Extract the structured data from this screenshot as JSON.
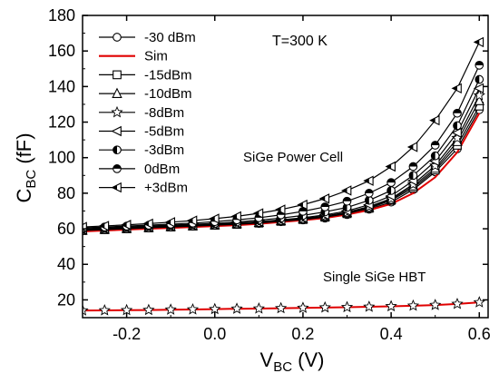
{
  "chart_data": {
    "type": "line",
    "xlabel": "V",
    "xlabel_sub": "BC",
    "xlabel_unit": " (V)",
    "ylabel": "C",
    "ylabel_sub": "BC",
    "ylabel_unit": " (fF)",
    "xlim": [
      -0.3,
      0.62
    ],
    "ylim": [
      10,
      180
    ],
    "xticks": [
      -0.2,
      0.0,
      0.2,
      0.4,
      0.6
    ],
    "yticks": [
      20,
      40,
      60,
      80,
      100,
      120,
      140,
      160,
      180
    ],
    "xtick_labels": [
      "-0.2",
      "0.0",
      "0.2",
      "0.4",
      "0.6"
    ],
    "ytick_labels": [
      "20",
      "40",
      "60",
      "80",
      "100",
      "120",
      "140",
      "160",
      "180"
    ],
    "grid": false,
    "legend_placement": "top-left",
    "annotations": {
      "temperature": "T=300 K",
      "power_cell": "SiGe Power Cell",
      "single_hbt": "Single SiGe HBT"
    },
    "x": [
      -0.3,
      -0.25,
      -0.2,
      -0.15,
      -0.1,
      -0.05,
      0.0,
      0.05,
      0.1,
      0.15,
      0.2,
      0.25,
      0.3,
      0.35,
      0.4,
      0.45,
      0.5,
      0.55,
      0.6
    ],
    "series": [
      {
        "name": "-30 dBm",
        "marker": "circle-open",
        "color": "#000000",
        "values": [
          59,
          59.5,
          60,
          60.5,
          61,
          61.5,
          62,
          62.5,
          63,
          64,
          65,
          66,
          68,
          71,
          75,
          82,
          92,
          105,
          127
        ]
      },
      {
        "name": "Sim",
        "marker": "none",
        "color": "#e00000",
        "values": [
          58.5,
          59,
          59.5,
          60,
          60.5,
          61,
          61.5,
          62,
          62.8,
          63.8,
          64.8,
          66,
          68,
          70.5,
          74,
          80,
          89,
          103,
          125
        ]
      },
      {
        "name": "-15dBm",
        "marker": "square-open",
        "color": "#000000",
        "values": [
          59,
          59.5,
          60,
          60.5,
          61,
          61.5,
          62,
          62.5,
          63.2,
          64.2,
          65.2,
          66.5,
          68.5,
          71.5,
          76,
          83,
          93,
          107,
          129
        ]
      },
      {
        "name": "-10dBm",
        "marker": "triangle-up-open",
        "color": "#000000",
        "values": [
          59.2,
          59.7,
          60.2,
          60.7,
          61.2,
          61.7,
          62.2,
          62.8,
          63.5,
          64.5,
          65.5,
          67,
          69,
          72,
          76.5,
          84,
          94,
          109,
          132
        ]
      },
      {
        "name": "-8dBm",
        "marker": "star-open",
        "color": "#000000",
        "values": [
          59.4,
          59.9,
          60.4,
          60.9,
          61.4,
          61.9,
          62.4,
          63,
          63.7,
          64.7,
          65.8,
          67.2,
          69.3,
          72.5,
          77,
          85,
          95.5,
          111,
          135
        ]
      },
      {
        "name": "-5dBm",
        "marker": "triangle-left-open",
        "color": "#000000",
        "values": [
          59.6,
          60.1,
          60.6,
          61.1,
          61.6,
          62.1,
          62.6,
          63.2,
          64,
          65,
          66.2,
          67.8,
          70,
          73.5,
          78.5,
          87,
          98,
          114,
          139
        ]
      },
      {
        "name": "-3dBm",
        "marker": "circle-half-left",
        "color": "#000000",
        "values": [
          60,
          60.5,
          61,
          61.5,
          62,
          62.5,
          63,
          63.8,
          64.8,
          66,
          67.5,
          69.5,
          72,
          76,
          81.5,
          90,
          101,
          118,
          144
        ]
      },
      {
        "name": "0dBm",
        "marker": "circle-half-top",
        "color": "#000000",
        "values": [
          60.5,
          61,
          61.5,
          62,
          62.6,
          63.2,
          64,
          65,
          66.2,
          67.8,
          69.8,
          72.3,
          75.5,
          80,
          86,
          95,
          107,
          125,
          152
        ]
      },
      {
        "name": "+3dBm",
        "marker": "triangle-left-half",
        "color": "#000000",
        "values": [
          61,
          61.6,
          62.2,
          62.9,
          63.7,
          64.6,
          65.7,
          67,
          68.7,
          70.8,
          73.5,
          77,
          81.5,
          87,
          95,
          106,
          121,
          139,
          165
        ]
      },
      {
        "name": "",
        "marker": "star-open",
        "color": "#000000",
        "line_color": "#e00000",
        "values": [
          14,
          14.1,
          14.2,
          14.3,
          14.5,
          14.6,
          14.8,
          15,
          15.1,
          15.3,
          15.5,
          15.7,
          15.9,
          16.1,
          16.4,
          16.7,
          17.1,
          17.7,
          18.6
        ]
      }
    ]
  }
}
